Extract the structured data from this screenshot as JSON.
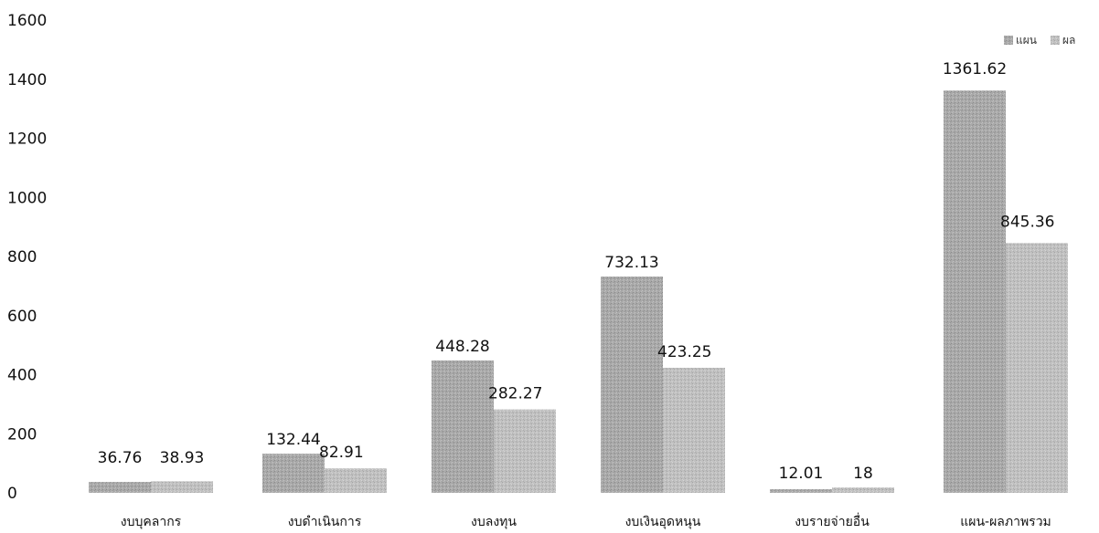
{
  "chart_data": {
    "type": "bar",
    "categories": [
      "งบบุคลากร",
      "งบดำเนินการ",
      "งบลงทุน",
      "งบเงินอุดหนุน",
      "งบรายจ่ายอื่น",
      "แผน-ผลภาพรวม"
    ],
    "series": [
      {
        "name": "แผน",
        "values": [
          36.76,
          132.44,
          448.28,
          732.13,
          12.01,
          1361.62
        ],
        "labels": [
          "36.76",
          "132.44",
          "448.28",
          "732.13",
          "12.01",
          "1361.62"
        ],
        "color": "#a8a8a8"
      },
      {
        "name": "ผล",
        "values": [
          38.93,
          82.91,
          282.27,
          423.25,
          18,
          845.36
        ],
        "labels": [
          "38.93",
          "82.91",
          "282.27",
          "423.25",
          "18",
          "845.36"
        ],
        "color": "#bdbdbd"
      }
    ],
    "yticks": [
      "0",
      "200",
      "400",
      "600",
      "800",
      "1000",
      "1200",
      "1400",
      "1600"
    ],
    "ylim": [
      0,
      1600
    ],
    "grid": false,
    "legend_position": "top-right"
  }
}
